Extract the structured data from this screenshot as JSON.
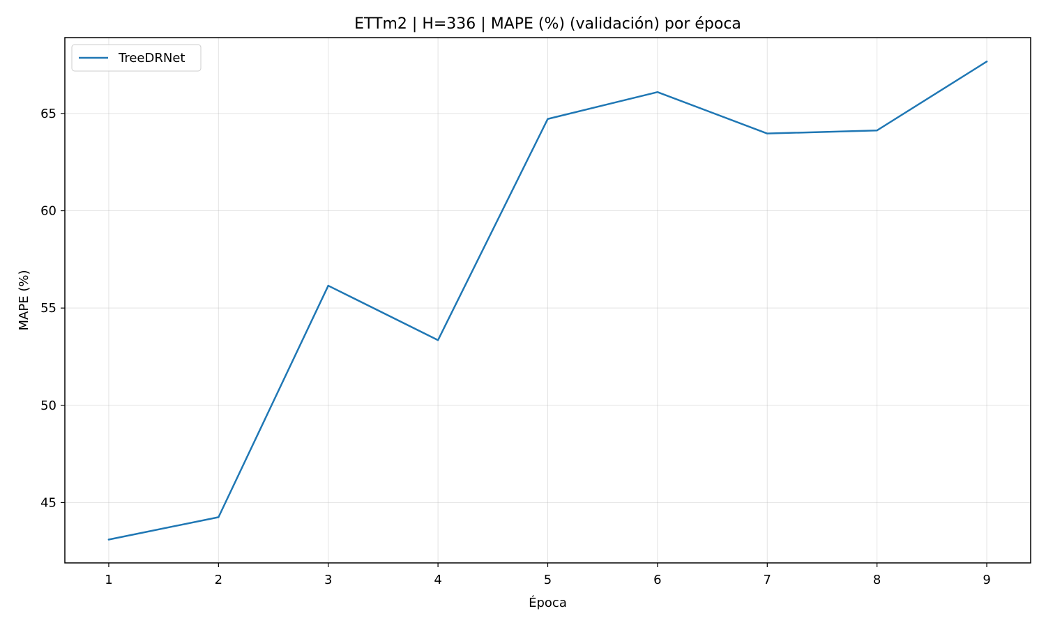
{
  "chart_data": {
    "type": "line",
    "title": "ETTm2 | H=336 | MAPE (%) (validación) por época",
    "xlabel": "Época",
    "ylabel": "MAPE (%)",
    "x": [
      1,
      2,
      3,
      4,
      5,
      6,
      7,
      8,
      9
    ],
    "xticks": [
      "1",
      "2",
      "3",
      "4",
      "5",
      "6",
      "7",
      "8",
      "9"
    ],
    "yticks": [
      "45",
      "50",
      "55",
      "60",
      "65"
    ],
    "xlim": [
      0.6,
      9.4
    ],
    "ylim": [
      41.9,
      68.9
    ],
    "grid": true,
    "legend_position": "top-left",
    "series": [
      {
        "name": "TreeDRNet",
        "color": "#1f77b4",
        "values": [
          43.1,
          44.25,
          56.15,
          53.35,
          64.72,
          66.1,
          63.97,
          64.13,
          67.67
        ]
      }
    ]
  }
}
